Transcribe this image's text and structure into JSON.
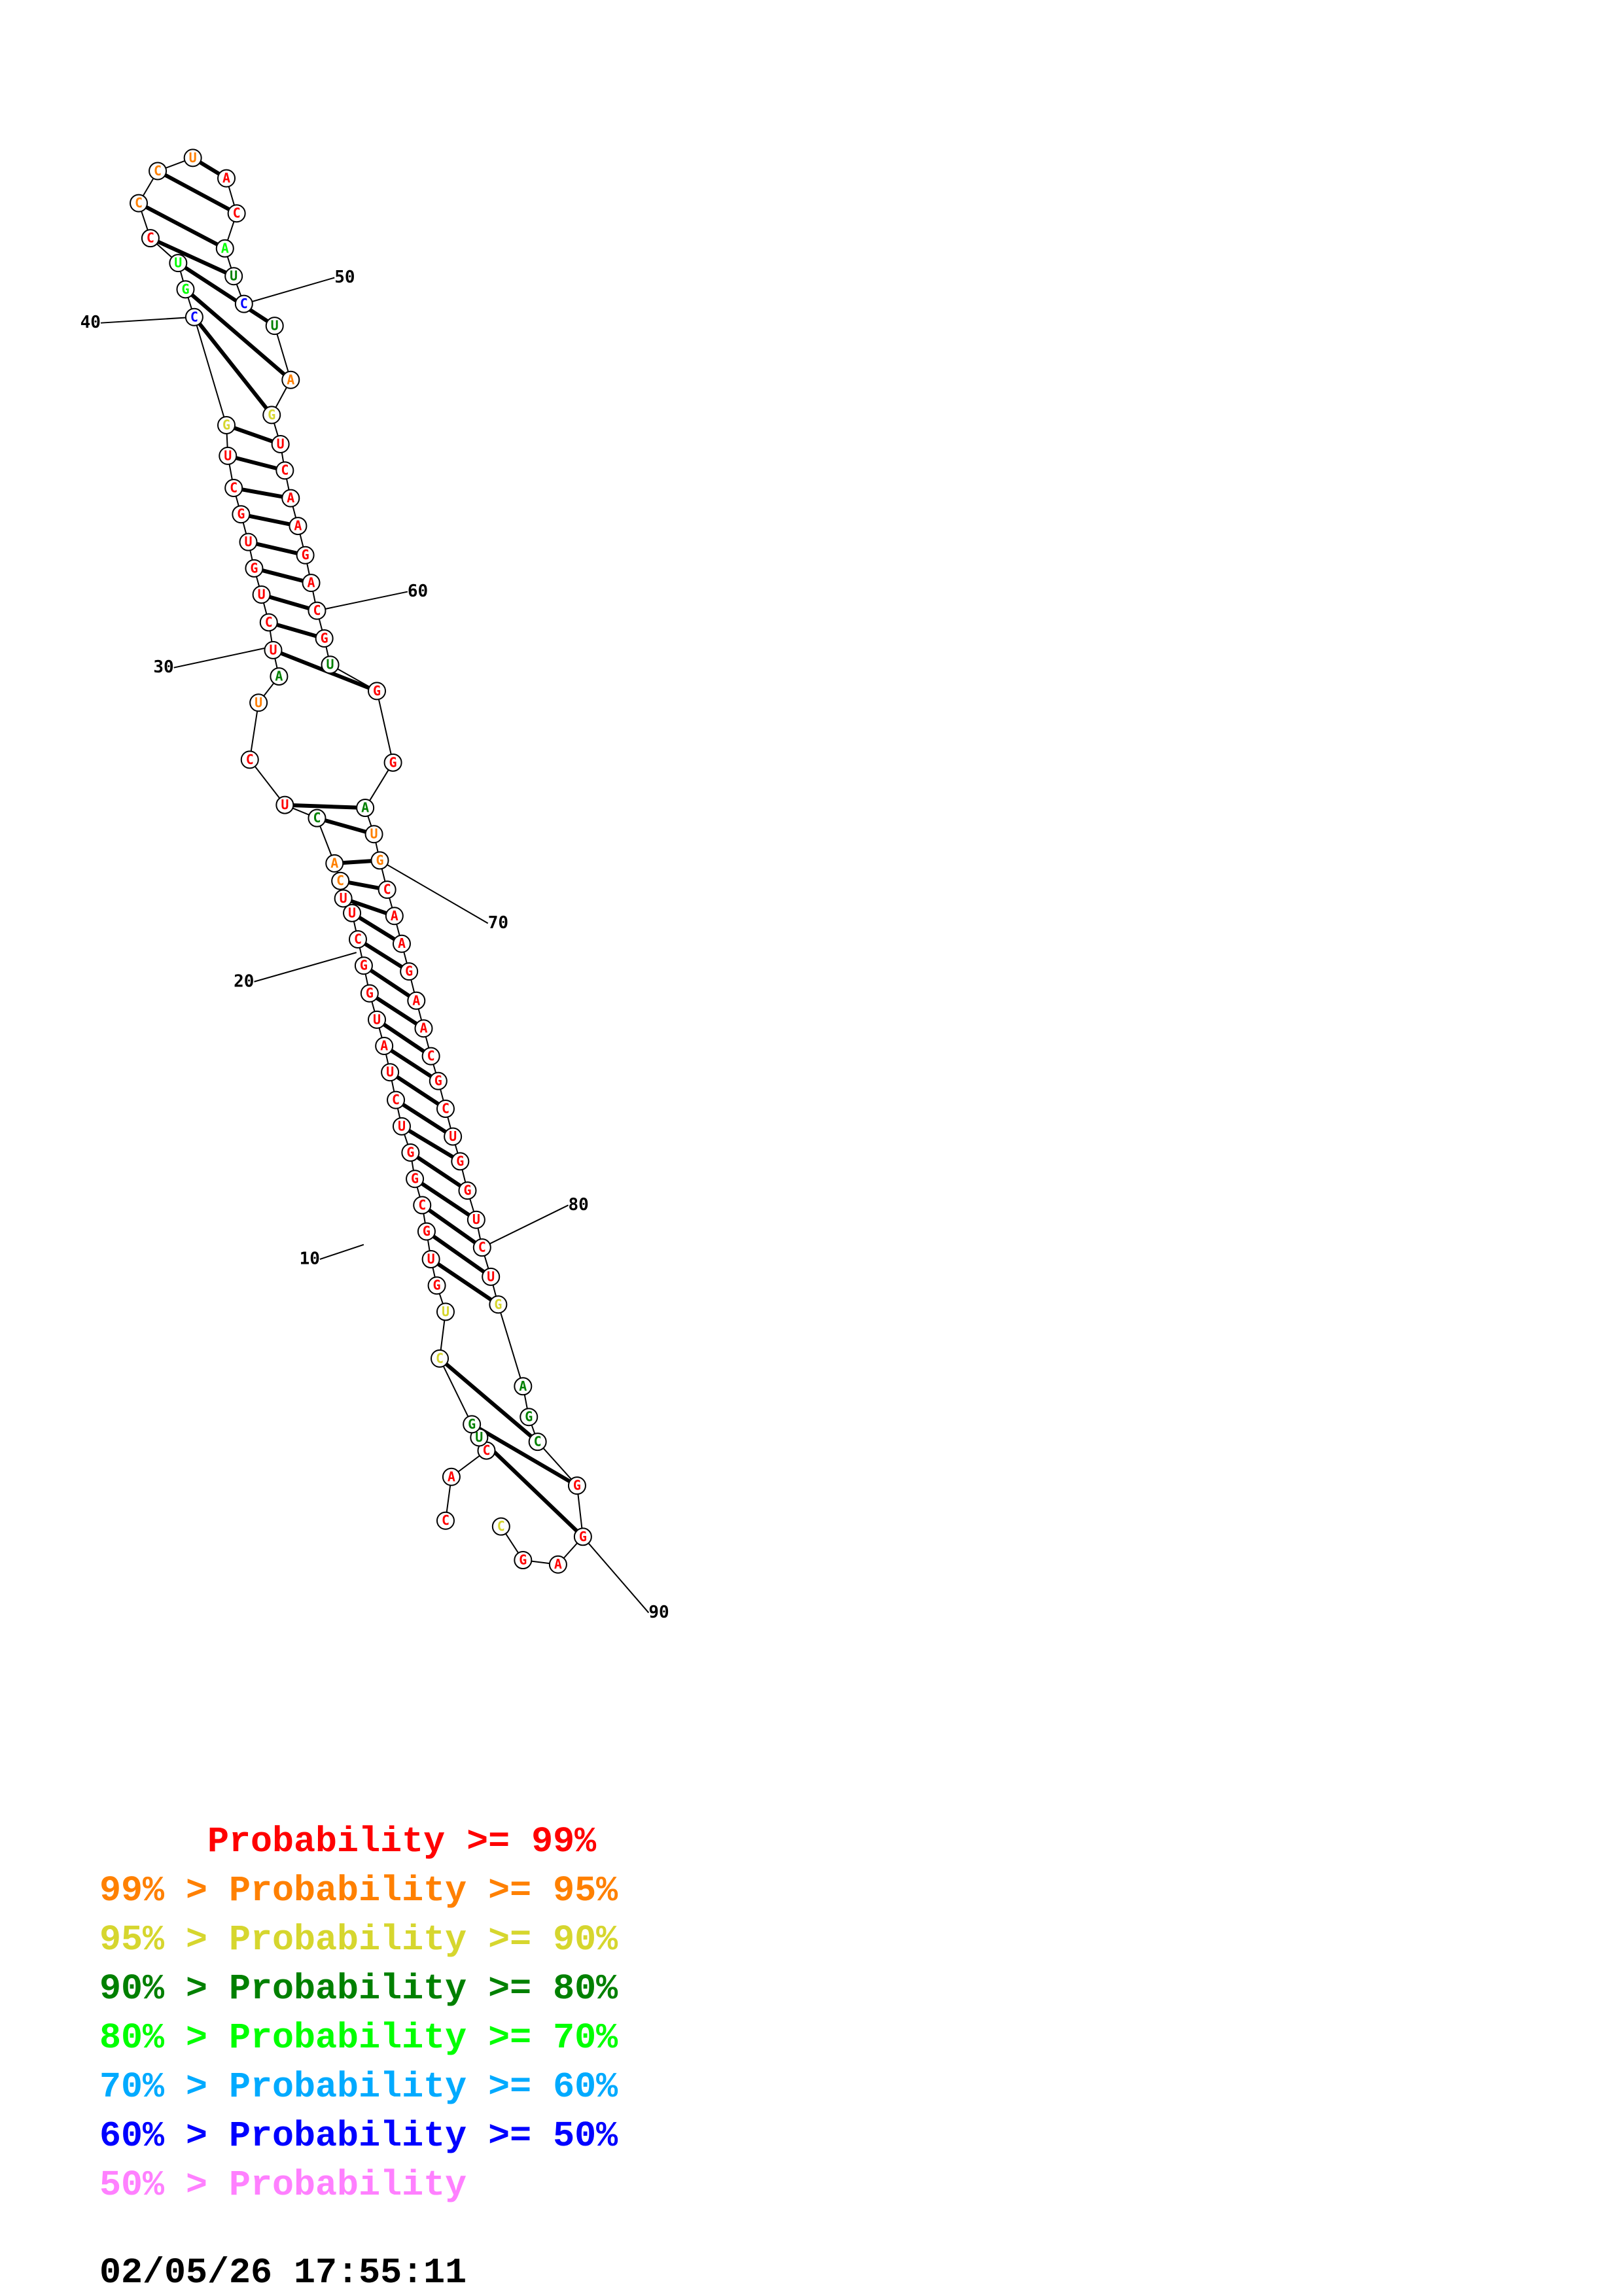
{
  "structure": {
    "sequence": "CACUGCUGUGCGGUCUAUGGCUUCACUCUAUCUGUGCUGCGUCCCUACAUCUAGUCAAGACGUGGAUGCAAGAACGCUGGUCUGAGCGGAGC",
    "sequence_note": "",
    "position_labels": [
      "10",
      "20",
      "30",
      "40",
      "50",
      "60",
      "70",
      "80",
      "90"
    ],
    "probability_levels": {
      "p99": "#ff0000",
      "p95": "#ff8000",
      "p90": "#d6d62e",
      "p80": "#008000",
      "p70": "#00ff00",
      "p60": "#00aaff",
      "p50": "#0000ff",
      "p00": "#ff80ff"
    }
  },
  "legend": [
    {
      "text": "     Probability >= 99%",
      "color": "#ff0000"
    },
    {
      "text": "99% > Probability >= 95%",
      "color": "#ff8000"
    },
    {
      "text": "95% > Probability >= 90%",
      "color": "#d6d62e"
    },
    {
      "text": "90% > Probability >= 80%",
      "color": "#008000"
    },
    {
      "text": "80% > Probability >= 70%",
      "color": "#00ff00"
    },
    {
      "text": "70% > Probability >= 60%",
      "color": "#00aaff"
    },
    {
      "text": "60% > Probability >= 50%",
      "color": "#0000ff"
    },
    {
      "text": "50% > Probability",
      "color": "#ff80ff"
    }
  ],
  "timestamp": "02/05/26 17:55:11"
}
